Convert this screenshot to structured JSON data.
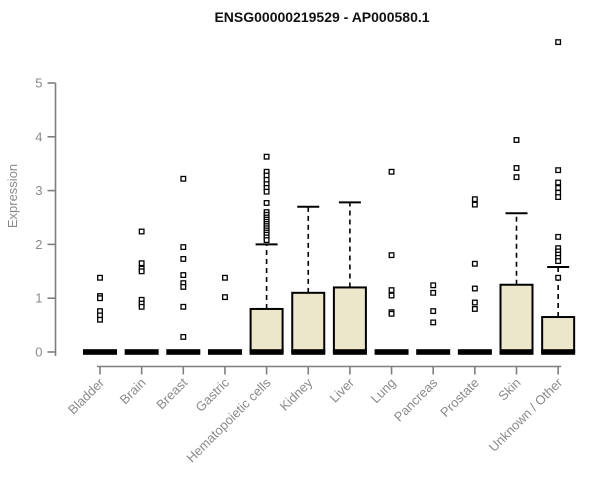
{
  "chart_data": {
    "type": "boxplot",
    "title": "ENSG00000219529 - AP000580.1",
    "ylabel": "Expression",
    "xlabel": "",
    "ylim": [
      0,
      5.8
    ],
    "yticks": [
      0,
      1,
      2,
      3,
      4,
      5
    ],
    "grid": false,
    "legend": "none",
    "colors": {
      "box_fill": "#ECE7CB",
      "box_stroke": "#000000",
      "axis_line": "#7f7f7f",
      "axis_text": "#8a8a8a",
      "title_text": "#111111",
      "point_stroke": "#000000",
      "point_fill": "#ffffff"
    },
    "categories": [
      "Bladder",
      "Brain",
      "Breast",
      "Gastric",
      "Hematopoietic cells",
      "Kidney",
      "Liver",
      "Lung",
      "Pancreas",
      "Prostate",
      "Skin",
      "Unknown / Other"
    ],
    "boxes": [
      {
        "category": "Bladder",
        "q1": 0,
        "median": 0,
        "q3": 0,
        "whisker_low": 0,
        "whisker_high": 0,
        "points": [
          1.38,
          1.04,
          1.0,
          0.76,
          0.68,
          0.6
        ]
      },
      {
        "category": "Brain",
        "q1": 0,
        "median": 0,
        "q3": 0,
        "whisker_low": 0,
        "whisker_high": 0,
        "points": [
          2.24,
          1.65,
          1.55,
          1.5,
          0.97,
          0.9,
          0.84
        ]
      },
      {
        "category": "Breast",
        "q1": 0,
        "median": 0,
        "q3": 0,
        "whisker_low": 0,
        "whisker_high": 0,
        "points": [
          3.22,
          1.95,
          1.73,
          1.43,
          1.28,
          1.21,
          0.84,
          0.28
        ]
      },
      {
        "category": "Gastric",
        "q1": 0,
        "median": 0,
        "q3": 0,
        "whisker_low": 0,
        "whisker_high": 0,
        "points": [
          1.38,
          1.02
        ]
      },
      {
        "category": "Hematopoietic cells",
        "q1": 0,
        "median": 0,
        "q3": 0.8,
        "whisker_low": 0,
        "whisker_high": 2.0,
        "points": [
          3.63,
          3.35,
          3.28,
          3.2,
          3.12,
          3.05,
          2.98,
          2.77,
          2.6,
          2.55,
          2.5,
          2.46,
          2.42,
          2.38,
          2.34,
          2.3,
          2.26,
          2.22,
          2.18,
          2.13,
          2.08
        ]
      },
      {
        "category": "Kidney",
        "q1": 0,
        "median": 0,
        "q3": 1.1,
        "whisker_low": 0,
        "whisker_high": 2.7,
        "points": []
      },
      {
        "category": "Liver",
        "q1": 0,
        "median": 0,
        "q3": 1.2,
        "whisker_low": 0,
        "whisker_high": 2.78,
        "points": []
      },
      {
        "category": "Lung",
        "q1": 0,
        "median": 0,
        "q3": 0,
        "whisker_low": 0,
        "whisker_high": 0,
        "points": [
          3.35,
          1.8,
          1.15,
          1.05,
          0.74,
          0.71
        ]
      },
      {
        "category": "Pancreas",
        "q1": 0,
        "median": 0,
        "q3": 0,
        "whisker_low": 0,
        "whisker_high": 0,
        "points": [
          1.24,
          1.1,
          0.76,
          0.55
        ]
      },
      {
        "category": "Prostate",
        "q1": 0,
        "median": 0,
        "q3": 0,
        "whisker_low": 0,
        "whisker_high": 0,
        "points": [
          2.84,
          2.74,
          1.64,
          1.18,
          0.92,
          0.8
        ]
      },
      {
        "category": "Skin",
        "q1": 0,
        "median": 0,
        "q3": 1.25,
        "whisker_low": 0,
        "whisker_high": 2.58,
        "points": [
          3.94,
          3.42,
          3.25
        ]
      },
      {
        "category": "Unknown / Other",
        "q1": 0,
        "median": 0,
        "q3": 0.65,
        "whisker_low": 0,
        "whisker_high": 1.58,
        "points": [
          5.76,
          3.38,
          3.15,
          3.05,
          2.96,
          2.88,
          2.14,
          1.93,
          1.87,
          1.81,
          1.75,
          1.69,
          1.38
        ]
      }
    ]
  }
}
